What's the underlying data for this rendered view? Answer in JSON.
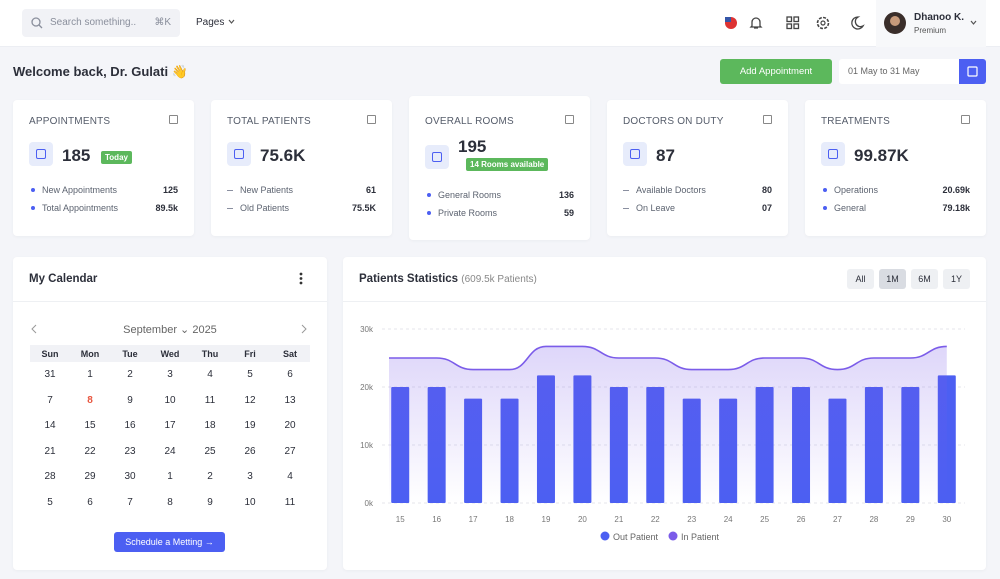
{
  "header": {
    "search_placeholder": "Search something..",
    "shortcut": "⌘K",
    "menu": "Pages",
    "user": {
      "name": "Dhanoo K.",
      "plan": "Premium"
    }
  },
  "welcome": {
    "title": "Welcome back, Dr. Gulati 👋",
    "button": "Add Appointment",
    "date_range": "01 May to 31 May"
  },
  "cards": [
    {
      "title": "APPOINTMENTS",
      "value": "185",
      "badge": "Today",
      "rows": [
        {
          "label": "New Appointments",
          "value": "125"
        },
        {
          "label": "Total Appointments",
          "value": "89.5k"
        }
      ]
    },
    {
      "title": "TOTAL PATIENTS",
      "value": "75.6K",
      "rows": [
        {
          "label": "New Patients",
          "value": "61"
        },
        {
          "label": "Old Patients",
          "value": "75.5K"
        }
      ]
    },
    {
      "title": "OVERALL ROOMS",
      "value": "195",
      "badge": "14 Rooms available",
      "rows": [
        {
          "label": "General Rooms",
          "value": "136"
        },
        {
          "label": "Private Rooms",
          "value": "59"
        }
      ]
    },
    {
      "title": "DOCTORS ON DUTY",
      "value": "87",
      "rows": [
        {
          "label": "Available Doctors",
          "value": "80"
        },
        {
          "label": "On Leave",
          "value": "07"
        }
      ]
    },
    {
      "title": "TREATMENTS",
      "value": "99.87K",
      "rows": [
        {
          "label": "Operations",
          "value": "20.69k"
        },
        {
          "label": "General",
          "value": "79.18k"
        }
      ]
    }
  ],
  "calendar": {
    "title": "My Calendar",
    "month": "September",
    "year": "2025",
    "weekdays": [
      "Sun",
      "Mon",
      "Tue",
      "Wed",
      "Thu",
      "Fri",
      "Sat"
    ],
    "weeks": [
      [
        "31",
        "1",
        "2",
        "3",
        "4",
        "5",
        "6"
      ],
      [
        "7",
        "8",
        "9",
        "10",
        "11",
        "12",
        "13"
      ],
      [
        "14",
        "15",
        "16",
        "17",
        "18",
        "19",
        "20"
      ],
      [
        "21",
        "22",
        "23",
        "24",
        "25",
        "26",
        "27"
      ],
      [
        "28",
        "29",
        "30",
        "1",
        "2",
        "3",
        "4"
      ],
      [
        "5",
        "6",
        "7",
        "8",
        "9",
        "10",
        "11"
      ]
    ],
    "button": "Schedule a Metting"
  },
  "chart_data": {
    "type": "bar",
    "title": "Patients Statistics",
    "subtitle": "(609.5k Patients)",
    "ranges": [
      "All",
      "1M",
      "6M",
      "1Y"
    ],
    "categories": [
      "15",
      "16",
      "17",
      "18",
      "19",
      "20",
      "21",
      "22",
      "23",
      "24",
      "25",
      "26",
      "27",
      "28",
      "29",
      "30"
    ],
    "series": [
      {
        "name": "Out Patient",
        "color": "#4c5ff2",
        "values": [
          20000,
          20000,
          18000,
          18000,
          22000,
          22000,
          20000,
          20000,
          18000,
          18000,
          20000,
          20000,
          18000,
          20000,
          20000,
          22000
        ]
      },
      {
        "name": "In Patient",
        "color": "#7b5ce9",
        "type": "line",
        "values": [
          25000,
          25000,
          23000,
          23000,
          27000,
          27000,
          25000,
          25000,
          23000,
          23000,
          25000,
          25000,
          23000,
          25000,
          25000,
          27000
        ]
      }
    ],
    "ylim": [
      0,
      30000
    ],
    "yticks": [
      {
        "value": 0,
        "label": "0k"
      },
      {
        "value": 10000,
        "label": "10k"
      },
      {
        "value": 20000,
        "label": "20k"
      },
      {
        "value": 30000,
        "label": "30k"
      }
    ],
    "grid": true
  }
}
